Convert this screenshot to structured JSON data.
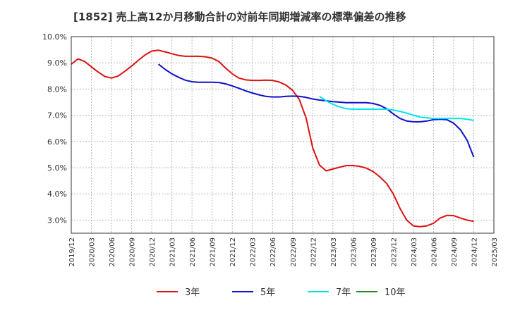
{
  "chart_data": {
    "type": "line",
    "title": "[1852]  売上高12か月移動合計の対前年同期増減率の標準偏差の推移",
    "xlabel": "",
    "ylabel": "",
    "x_start": "2019-12",
    "x_end": "2025-03",
    "x_ticks": [
      "2019/12",
      "2020/03",
      "2020/06",
      "2020/09",
      "2020/12",
      "2021/03",
      "2021/06",
      "2021/09",
      "2021/12",
      "2022/03",
      "2022/06",
      "2022/09",
      "2022/12",
      "2023/03",
      "2023/06",
      "2023/09",
      "2023/12",
      "2024/03",
      "2024/06",
      "2024/09",
      "2024/12",
      "2025/03"
    ],
    "ylim": [
      2.5,
      10.0
    ],
    "y_ticks": [
      3.0,
      4.0,
      5.0,
      6.0,
      7.0,
      8.0,
      9.0,
      10.0
    ],
    "y_tick_labels": [
      "3.0%",
      "4.0%",
      "5.0%",
      "6.0%",
      "7.0%",
      "8.0%",
      "9.0%",
      "10.0%"
    ],
    "grid": true,
    "legend_position": "bottom",
    "series": [
      {
        "name": "3年",
        "color": "#dd1111",
        "x": [
          "2019-12",
          "2020-01",
          "2020-02",
          "2020-03",
          "2020-04",
          "2020-05",
          "2020-06",
          "2020-07",
          "2020-08",
          "2020-09",
          "2020-10",
          "2020-11",
          "2020-12",
          "2021-01",
          "2021-02",
          "2021-03",
          "2021-04",
          "2021-05",
          "2021-06",
          "2021-07",
          "2021-08",
          "2021-09",
          "2021-10",
          "2021-11",
          "2021-12",
          "2022-01",
          "2022-02",
          "2022-03",
          "2022-04",
          "2022-05",
          "2022-06",
          "2022-07",
          "2022-08",
          "2022-09",
          "2022-10",
          "2022-11",
          "2022-12",
          "2023-01",
          "2023-02",
          "2023-03",
          "2023-04",
          "2023-05",
          "2023-06",
          "2023-07",
          "2023-08",
          "2023-09",
          "2023-10",
          "2023-11",
          "2023-12",
          "2024-01",
          "2024-02",
          "2024-03",
          "2024-04",
          "2024-05",
          "2024-06",
          "2024-07",
          "2024-08",
          "2024-09",
          "2024-10",
          "2024-11",
          "2024-12"
        ],
        "values": [
          8.95,
          9.15,
          9.05,
          8.85,
          8.65,
          8.48,
          8.42,
          8.5,
          8.68,
          8.88,
          9.1,
          9.3,
          9.45,
          9.48,
          9.42,
          9.35,
          9.28,
          9.25,
          9.25,
          9.25,
          9.23,
          9.18,
          9.05,
          8.8,
          8.58,
          8.42,
          8.35,
          8.33,
          8.33,
          8.34,
          8.33,
          8.27,
          8.15,
          7.95,
          7.6,
          6.9,
          5.75,
          5.1,
          4.88,
          4.95,
          5.02,
          5.08,
          5.08,
          5.05,
          4.98,
          4.85,
          4.65,
          4.4,
          4.0,
          3.45,
          3.0,
          2.78,
          2.75,
          2.78,
          2.88,
          3.08,
          3.18,
          3.17,
          3.08,
          3.0,
          2.95
        ]
      },
      {
        "name": "5年",
        "color": "#1111cc",
        "x": [
          "2021-01",
          "2021-02",
          "2021-03",
          "2021-04",
          "2021-05",
          "2021-06",
          "2021-07",
          "2021-08",
          "2021-09",
          "2021-10",
          "2021-11",
          "2021-12",
          "2022-01",
          "2022-02",
          "2022-03",
          "2022-04",
          "2022-05",
          "2022-06",
          "2022-07",
          "2022-08",
          "2022-09",
          "2022-10",
          "2022-11",
          "2022-12",
          "2023-01",
          "2023-02",
          "2023-03",
          "2023-04",
          "2023-05",
          "2023-06",
          "2023-07",
          "2023-08",
          "2023-09",
          "2023-10",
          "2023-11",
          "2023-12",
          "2024-01",
          "2024-02",
          "2024-03",
          "2024-04",
          "2024-05",
          "2024-06",
          "2024-07",
          "2024-08",
          "2024-09",
          "2024-10",
          "2024-11",
          "2024-12"
        ],
        "values": [
          8.95,
          8.75,
          8.58,
          8.45,
          8.34,
          8.28,
          8.26,
          8.26,
          8.26,
          8.25,
          8.2,
          8.12,
          8.03,
          7.93,
          7.85,
          7.78,
          7.72,
          7.7,
          7.7,
          7.72,
          7.73,
          7.72,
          7.68,
          7.62,
          7.58,
          7.55,
          7.52,
          7.5,
          7.48,
          7.48,
          7.48,
          7.48,
          7.45,
          7.38,
          7.25,
          7.05,
          6.88,
          6.78,
          6.75,
          6.75,
          6.78,
          6.83,
          6.85,
          6.83,
          6.7,
          6.45,
          6.05,
          5.4
        ]
      },
      {
        "name": "7年",
        "color": "#00e5ee",
        "x": [
          "2023-01",
          "2023-02",
          "2023-03",
          "2023-04",
          "2023-05",
          "2023-06",
          "2023-07",
          "2023-08",
          "2023-09",
          "2023-10",
          "2023-11",
          "2023-12",
          "2024-01",
          "2024-02",
          "2024-03",
          "2024-04",
          "2024-05",
          "2024-06",
          "2024-07",
          "2024-08",
          "2024-09",
          "2024-10",
          "2024-11",
          "2024-12"
        ],
        "values": [
          7.72,
          7.55,
          7.42,
          7.32,
          7.25,
          7.23,
          7.23,
          7.23,
          7.23,
          7.23,
          7.23,
          7.2,
          7.15,
          7.08,
          7.0,
          6.93,
          6.9,
          6.88,
          6.88,
          6.88,
          6.88,
          6.88,
          6.85,
          6.8
        ]
      },
      {
        "name": "10年",
        "color": "#228b22",
        "x": [],
        "values": []
      }
    ]
  }
}
